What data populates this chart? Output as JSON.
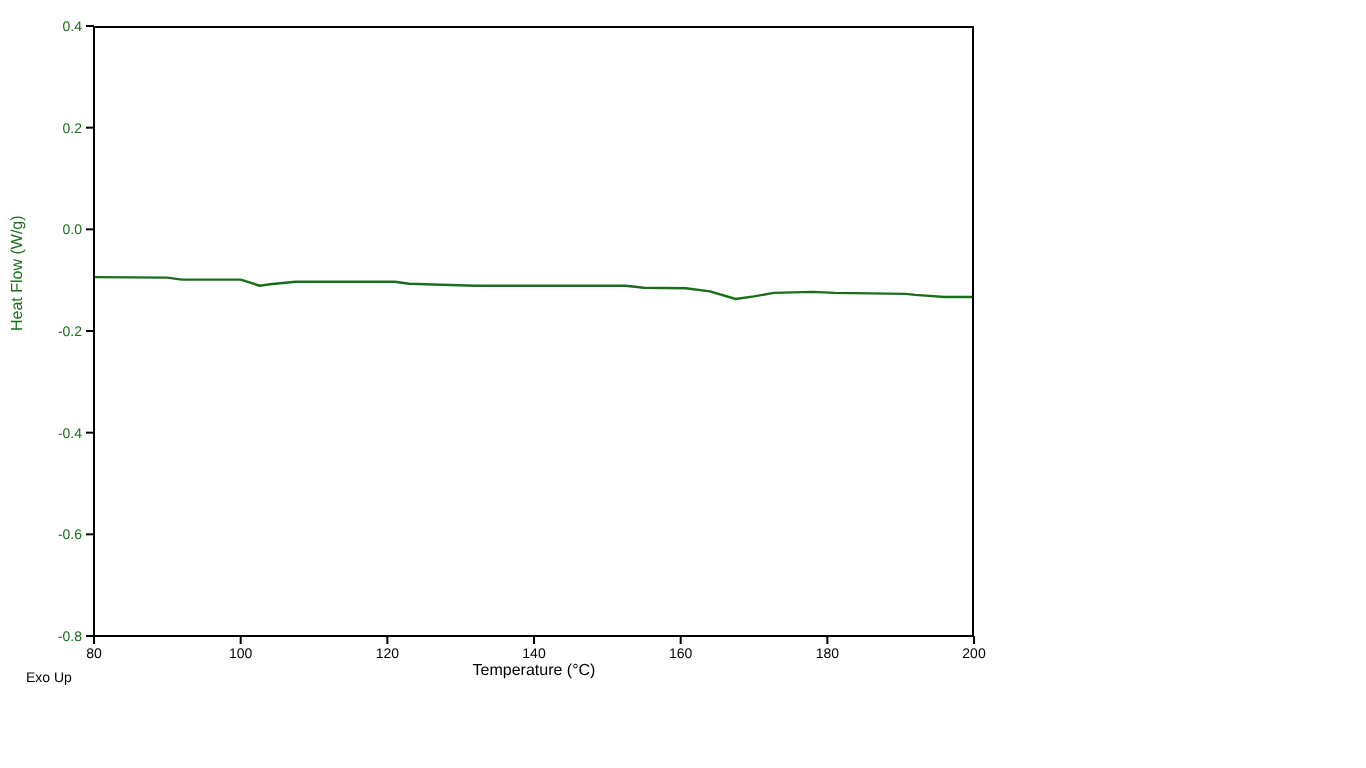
{
  "chart_data": {
    "type": "line",
    "xlabel": "Temperature (°C)",
    "ylabel": "Heat Flow (W/g)",
    "annotations": [
      "Exo Up"
    ],
    "x": [
      80,
      90,
      92,
      100,
      102.6,
      104,
      107.5,
      121,
      123,
      132,
      152.5,
      155,
      160.7,
      164,
      167.5,
      170,
      172.7,
      178,
      181,
      190.7,
      192,
      196,
      200
    ],
    "series": [
      {
        "color": "#1a6e1a",
        "values": [
          -0.094,
          -0.095,
          -0.099,
          -0.099,
          -0.111,
          -0.108,
          -0.103,
          -0.103,
          -0.107,
          -0.111,
          -0.111,
          -0.115,
          -0.116,
          -0.122,
          -0.137,
          -0.132,
          -0.125,
          -0.123,
          -0.125,
          -0.127,
          -0.129,
          -0.133,
          -0.133
        ]
      }
    ],
    "xlim": [
      80,
      200
    ],
    "xticks": [
      80,
      100,
      120,
      140,
      160,
      180,
      200
    ],
    "ylim": [
      -0.8,
      0.4
    ],
    "yticks": [
      {
        "value": -0.8,
        "label": "-0.8"
      },
      {
        "value": -0.6,
        "label": "-0.6"
      },
      {
        "value": -0.4,
        "label": "-0.4"
      },
      {
        "value": -0.2,
        "label": "-0.2"
      },
      {
        "value": 0,
        "label": "0.0"
      },
      {
        "value": 0.2,
        "label": "0.2"
      },
      {
        "value": 0.4,
        "label": "0.4"
      }
    ],
    "grid": false,
    "legend": false,
    "marker": "none",
    "line_style": "solid"
  }
}
